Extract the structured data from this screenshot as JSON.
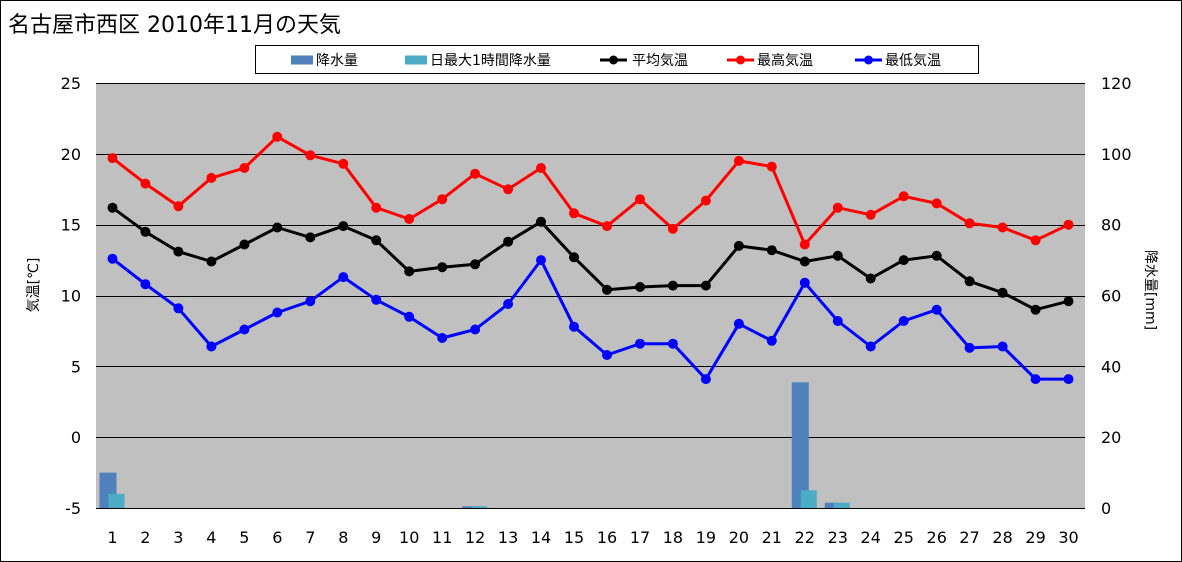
{
  "chart_data": {
    "type": "line",
    "title": "名古屋市西区 2010年11月の天気",
    "ylabel": "気温[℃]",
    "y2label": "降水量[mm]",
    "ylim": [
      -5,
      25
    ],
    "y2lim": [
      0,
      120
    ],
    "yticks": [
      25,
      20,
      15,
      10,
      5,
      0,
      -5
    ],
    "y2ticks": [
      120,
      100,
      80,
      60,
      40,
      20,
      0
    ],
    "grid": true,
    "legend": "top",
    "plot_background": "#c0c0c0",
    "categories": [
      1,
      2,
      3,
      4,
      5,
      6,
      7,
      8,
      9,
      10,
      11,
      12,
      13,
      14,
      15,
      16,
      17,
      18,
      19,
      20,
      21,
      22,
      23,
      24,
      25,
      26,
      27,
      28,
      29,
      30
    ],
    "series": [
      {
        "name": "降水量",
        "type": "bar",
        "axis": "right",
        "color": "#4f81bd",
        "values": [
          10.0,
          0,
          0,
          0,
          0,
          0,
          0,
          0,
          0,
          0,
          0,
          0.5,
          0,
          0,
          0,
          0,
          0,
          0,
          0,
          0,
          0,
          35.5,
          1.5,
          0,
          0,
          0,
          0,
          0,
          0,
          0
        ]
      },
      {
        "name": "日最大1時間降水量",
        "type": "bar",
        "axis": "right",
        "color": "#4bacc6",
        "values": [
          4.0,
          0,
          0,
          0,
          0,
          0,
          0,
          0,
          0,
          0,
          0,
          0.5,
          0,
          0,
          0,
          0,
          0,
          0,
          0,
          0,
          0,
          5.0,
          1.5,
          0,
          0,
          0,
          0,
          0,
          0,
          0
        ]
      },
      {
        "name": "平均気温",
        "type": "line",
        "axis": "left",
        "color": "#000000",
        "values": [
          16.2,
          14.5,
          13.1,
          12.4,
          13.6,
          14.8,
          14.1,
          14.9,
          13.9,
          11.7,
          12.0,
          12.2,
          13.8,
          15.2,
          12.7,
          10.4,
          10.6,
          10.7,
          10.7,
          13.5,
          13.2,
          12.4,
          12.8,
          11.2,
          12.5,
          12.8,
          11.0,
          10.2,
          9.0,
          9.6
        ]
      },
      {
        "name": "最高気温",
        "type": "line",
        "axis": "left",
        "color": "#ff0000",
        "values": [
          19.7,
          17.9,
          16.3,
          18.3,
          19.0,
          21.2,
          19.9,
          19.3,
          16.2,
          15.4,
          16.8,
          18.6,
          17.5,
          19.0,
          15.8,
          14.9,
          16.8,
          14.7,
          16.7,
          19.5,
          19.1,
          13.6,
          16.2,
          15.7,
          17.0,
          16.5,
          15.1,
          14.8,
          13.9,
          15.0
        ]
      },
      {
        "name": "最低気温",
        "type": "line",
        "axis": "left",
        "color": "#0000ff",
        "values": [
          12.6,
          10.8,
          9.1,
          6.4,
          7.6,
          8.8,
          9.6,
          11.3,
          9.7,
          8.5,
          7.0,
          7.6,
          9.4,
          12.5,
          7.8,
          5.8,
          6.6,
          6.6,
          4.1,
          8.0,
          6.8,
          10.9,
          8.2,
          6.4,
          8.2,
          9.0,
          6.3,
          6.4,
          4.1,
          4.1
        ]
      }
    ]
  }
}
